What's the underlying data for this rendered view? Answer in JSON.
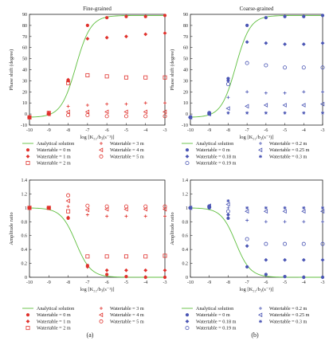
{
  "figure": {
    "sub_a": "(a)",
    "sub_b": "(b)"
  },
  "colors": {
    "analytic": "#5fbf3f",
    "red": "#e0322d",
    "blue": "#4a55b4",
    "axis": "#222222"
  },
  "chart_data": [
    {
      "id": "phase_fine",
      "type": "scatter",
      "title": "Fine-grained",
      "xlabel": "log [K₂₂/b₃(s⁻¹)]",
      "ylabel": "Phase shift (degree)",
      "xlim": [
        -10,
        -3
      ],
      "ylim": [
        -10,
        90
      ],
      "xticks": [
        -10,
        -9,
        -8,
        -7,
        -6,
        -5,
        -4,
        -3
      ],
      "yticks": [
        -10,
        0,
        10,
        20,
        30,
        40,
        50,
        60,
        70,
        80,
        90
      ],
      "analytical": {
        "name": "Analytical solution",
        "kind": "phase",
        "mid": -7.6,
        "k": 2.6,
        "min": -3,
        "max": 89
      },
      "x": [
        -10,
        -9,
        -8,
        -7,
        -6,
        -5,
        -4,
        -3
      ],
      "series": [
        {
          "name": "Watertable = 0 m",
          "marker": "filled",
          "color": "red",
          "values": [
            -3,
            0,
            30,
            80,
            87,
            88,
            88,
            89
          ]
        },
        {
          "name": "Watertable = 1 m",
          "marker": "diamond",
          "color": "red",
          "values": [
            -3,
            1,
            31,
            68,
            69,
            70,
            72,
            73
          ]
        },
        {
          "name": "Watertable = 2 m",
          "marker": "square",
          "color": "red",
          "values": [
            -3,
            1,
            28,
            35,
            34,
            33,
            33,
            33
          ]
        },
        {
          "name": "Watertable = 3 m",
          "marker": "plus",
          "color": "red",
          "values": [
            -3,
            0,
            7,
            8,
            9,
            9,
            10,
            10
          ]
        },
        {
          "name": "Watertable = 4 m",
          "marker": "tri",
          "color": "red",
          "values": [
            -3,
            0,
            2,
            2,
            2,
            2,
            2,
            2
          ]
        },
        {
          "name": "Watertable = 5 m",
          "marker": "open",
          "color": "red",
          "values": [
            -3,
            0,
            -1,
            -1,
            -2,
            -2,
            -2,
            -2
          ]
        }
      ]
    },
    {
      "id": "phase_coarse",
      "type": "scatter",
      "title": "Coarse-grained",
      "xlabel": "log [K₂₂/b₃(s⁻¹)]",
      "ylabel": "Phase shift (degree)",
      "xlim": [
        -10,
        -3
      ],
      "ylim": [
        -10,
        90
      ],
      "xticks": [
        -10,
        -9,
        -8,
        -7,
        -6,
        -5,
        -4,
        -3
      ],
      "yticks": [
        -10,
        0,
        10,
        20,
        30,
        40,
        50,
        60,
        70,
        80,
        90
      ],
      "analytical": {
        "name": "Analytical solution",
        "kind": "phase",
        "mid": -7.6,
        "k": 2.6,
        "min": -3,
        "max": 89
      },
      "x": [
        -10,
        -9,
        -8,
        -7,
        -6,
        -5,
        -4,
        -3
      ],
      "series": [
        {
          "name": "Watertable = 0 m",
          "marker": "filled",
          "color": "blue",
          "values": [
            -3,
            0,
            32,
            80,
            87,
            88,
            88,
            89
          ]
        },
        {
          "name": "Watertable = 0.18 m",
          "marker": "diamond",
          "color": "blue",
          "values": [
            -3,
            1,
            30,
            65,
            64,
            63,
            63,
            64
          ]
        },
        {
          "name": "Watertable = 0.19 m",
          "marker": "open",
          "color": "blue",
          "values": [
            -3,
            1,
            27,
            46,
            44,
            42,
            42,
            42
          ]
        },
        {
          "name": "Watertable = 0.2 m",
          "marker": "plus",
          "color": "blue",
          "values": [
            -3,
            0,
            15,
            20,
            19,
            19,
            20,
            20
          ]
        },
        {
          "name": "Watertable = 0.25 m",
          "marker": "tri",
          "color": "blue",
          "values": [
            -3,
            0,
            5,
            7,
            8,
            8,
            8,
            9
          ]
        },
        {
          "name": "Watertable = 0.3 m",
          "marker": "star",
          "color": "blue",
          "values": [
            -3,
            0,
            1,
            1,
            1,
            1,
            1,
            1
          ]
        }
      ]
    },
    {
      "id": "amp_fine",
      "type": "scatter",
      "title": "",
      "xlabel": "log [K₂₂/b₃(s⁻¹)]",
      "ylabel": "Amplitude ratio",
      "xlim": [
        -10,
        -3
      ],
      "ylim": [
        0,
        1.4
      ],
      "xticks": [
        -10,
        -9,
        -8,
        -7,
        -6,
        -5,
        -4,
        -3
      ],
      "yticks": [
        0,
        0.2,
        0.4,
        0.6,
        0.8,
        1,
        1.2,
        1.4
      ],
      "analytical": {
        "name": "Analytical solution",
        "kind": "amp",
        "mid": -7.6,
        "k": 2.6,
        "min": 0,
        "max": 1
      },
      "x": [
        -10,
        -9,
        -8,
        -7,
        -6,
        -5,
        -4,
        -3
      ],
      "series": [
        {
          "name": "Watertable = 0 m",
          "marker": "filled",
          "color": "red",
          "values": [
            1.0,
            1.0,
            0.85,
            0.17,
            0.04,
            0.01,
            0.0,
            0.0
          ]
        },
        {
          "name": "Watertable = 1 m",
          "marker": "diamond",
          "color": "red",
          "values": [
            1.0,
            1.0,
            0.86,
            0.15,
            0.1,
            0.1,
            0.1,
            0.1
          ]
        },
        {
          "name": "Watertable = 2 m",
          "marker": "square",
          "color": "red",
          "values": [
            1.0,
            1.0,
            0.95,
            0.3,
            0.3,
            0.3,
            0.3,
            0.31
          ]
        },
        {
          "name": "Watertable = 3 m",
          "marker": "plus",
          "color": "red",
          "values": [
            1.0,
            1.0,
            1.02,
            0.9,
            0.88,
            0.88,
            0.88,
            0.88
          ]
        },
        {
          "name": "Watertable = 4 m",
          "marker": "tri",
          "color": "red",
          "values": [
            1.0,
            1.0,
            1.1,
            0.97,
            0.98,
            0.98,
            0.98,
            0.98
          ]
        },
        {
          "name": "Watertable = 5 m",
          "marker": "open",
          "color": "red",
          "values": [
            1.0,
            1.0,
            1.18,
            1.03,
            1.02,
            1.02,
            1.02,
            1.02
          ]
        }
      ]
    },
    {
      "id": "amp_coarse",
      "type": "scatter",
      "title": "",
      "xlabel": "log [K₂₂/b₃(s⁻¹)]",
      "ylabel": "Amplitude ratio",
      "xlim": [
        -10,
        -3
      ],
      "ylim": [
        0,
        1.4
      ],
      "xticks": [
        -10,
        -9,
        -8,
        -7,
        -6,
        -5,
        -4,
        -3
      ],
      "yticks": [
        0,
        0.2,
        0.4,
        0.6,
        0.8,
        1,
        1.2,
        1.4
      ],
      "analytical": {
        "name": "Analytical solution",
        "kind": "amp",
        "mid": -7.6,
        "k": 2.6,
        "min": 0,
        "max": 1
      },
      "x": [
        -10,
        -9,
        -8,
        -7,
        -6,
        -5,
        -4,
        -3
      ],
      "series": [
        {
          "name": "Watertable = 0 m",
          "marker": "filled",
          "color": "blue",
          "values": [
            1.0,
            1.0,
            0.85,
            0.15,
            0.04,
            0.01,
            0.0,
            0.0
          ]
        },
        {
          "name": "Watertable = 0.18 m",
          "marker": "diamond",
          "color": "blue",
          "values": [
            1.0,
            1.01,
            0.9,
            0.45,
            0.25,
            0.25,
            0.25,
            0.25
          ]
        },
        {
          "name": "Watertable = 0.19 m",
          "marker": "open",
          "color": "blue",
          "values": [
            1.0,
            1.01,
            0.95,
            0.55,
            0.48,
            0.48,
            0.48,
            0.48
          ]
        },
        {
          "name": "Watertable = 0.2 m",
          "marker": "plus",
          "color": "blue",
          "values": [
            1.0,
            1.02,
            1.0,
            0.82,
            0.8,
            0.8,
            0.8,
            0.8
          ]
        },
        {
          "name": "Watertable = 0.25 m",
          "marker": "tri",
          "color": "blue",
          "values": [
            1.0,
            1.03,
            1.05,
            0.95,
            0.95,
            0.95,
            0.95,
            0.95
          ]
        },
        {
          "name": "Watertable = 0.3 m",
          "marker": "star",
          "color": "blue",
          "values": [
            1.0,
            1.03,
            1.1,
            1.0,
            1.0,
            1.0,
            1.0,
            1.0
          ]
        }
      ]
    }
  ],
  "legends": {
    "fine": {
      "col1": [
        "Analytical solution",
        "Watertable = 0 m",
        "Watertable = 1 m",
        "Watertable = 2 m"
      ],
      "col2": [
        "Watertable = 3 m",
        "Watertable = 4 m",
        "Watertable = 5 m"
      ]
    },
    "coarse": {
      "col1": [
        "Analytical solution",
        "Watertable = 0 m",
        "Watertable = 0.18 m",
        "Watertable = 0.19 m"
      ],
      "col2": [
        "Watertable = 0.2 m",
        "Watertable = 0.25 m",
        "Watertable = 0.3 m"
      ]
    }
  }
}
